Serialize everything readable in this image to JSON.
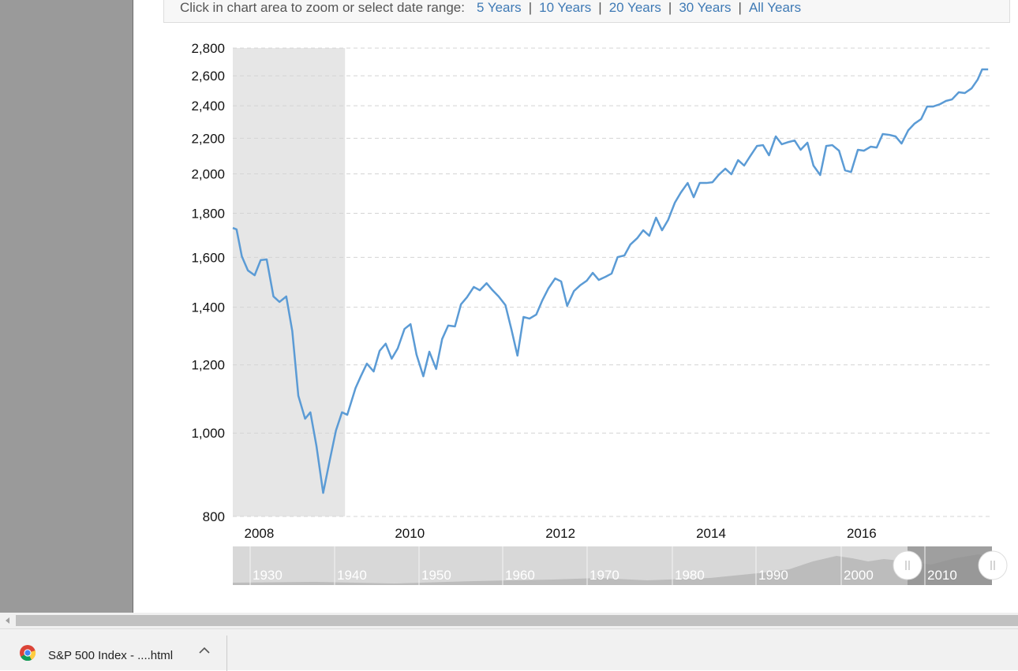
{
  "toolbar": {
    "prompt": "Click in chart area to zoom or select date range:",
    "separator": "|",
    "ranges": [
      "5 Years",
      "10 Years",
      "20 Years",
      "30 Years",
      "All Years"
    ]
  },
  "chart_data": {
    "type": "line",
    "yscale": "log",
    "color": "#5b9bd5",
    "grid": true,
    "xlim": [
      2007.65,
      2017.72
    ],
    "xticks": [
      2008,
      2010,
      2012,
      2014,
      2016
    ],
    "ylim": [
      800,
      2800
    ],
    "yticks": [
      800,
      {
        "value": 1000,
        "label": "1,000"
      },
      {
        "value": 1200,
        "label": "1,200"
      },
      {
        "value": 1400,
        "label": "1,400"
      },
      {
        "value": 1600,
        "label": "1,600"
      },
      {
        "value": 1800,
        "label": "1,800"
      },
      {
        "value": 2000,
        "label": "2,000"
      },
      {
        "value": 2200,
        "label": "2,200"
      },
      {
        "value": 2400,
        "label": "2,400"
      },
      {
        "value": 2600,
        "label": "2,600"
      },
      {
        "value": 2800,
        "label": "2,800"
      }
    ],
    "shaded_range": [
      2007.65,
      2009.14
    ],
    "x": [
      2007.65,
      2007.7,
      2007.77,
      2007.85,
      2007.94,
      2008.02,
      2008.1,
      2008.19,
      2008.27,
      2008.36,
      2008.44,
      2008.52,
      2008.61,
      2008.68,
      2008.76,
      2008.85,
      2008.93,
      2009.02,
      2009.1,
      2009.17,
      2009.28,
      2009.35,
      2009.43,
      2009.52,
      2009.6,
      2009.68,
      2009.76,
      2009.84,
      2009.93,
      2010.01,
      2010.09,
      2010.18,
      2010.26,
      2010.35,
      2010.43,
      2010.51,
      2010.6,
      2010.68,
      2010.76,
      2010.85,
      2010.93,
      2011.02,
      2011.1,
      2011.18,
      2011.27,
      2011.35,
      2011.43,
      2011.51,
      2011.59,
      2011.68,
      2011.76,
      2011.84,
      2011.93,
      2012.01,
      2012.09,
      2012.18,
      2012.26,
      2012.35,
      2012.43,
      2012.51,
      2012.6,
      2012.68,
      2012.76,
      2012.85,
      2012.93,
      2013.02,
      2013.1,
      2013.18,
      2013.27,
      2013.35,
      2013.43,
      2013.52,
      2013.6,
      2013.69,
      2013.77,
      2013.85,
      2013.94,
      2014.02,
      2014.1,
      2014.19,
      2014.27,
      2014.36,
      2014.44,
      2014.52,
      2014.61,
      2014.69,
      2014.77,
      2014.86,
      2014.94,
      2015.03,
      2015.11,
      2015.19,
      2015.28,
      2015.36,
      2015.45,
      2015.53,
      2015.61,
      2015.7,
      2015.78,
      2015.86,
      2015.95,
      2016.03,
      2016.12,
      2016.2,
      2016.28,
      2016.37,
      2016.45,
      2016.53,
      2016.62,
      2016.7,
      2016.79,
      2016.87,
      2016.95,
      2017.04,
      2017.12,
      2017.2,
      2017.29,
      2017.37,
      2017.46,
      2017.54,
      2017.6,
      2017.68
    ],
    "values": [
      1731,
      1724,
      1604,
      1545,
      1525,
      1588,
      1591,
      1441,
      1420,
      1441,
      1313,
      1105,
      1039,
      1057,
      967,
      852,
      923,
      1007,
      1057,
      1050,
      1128,
      1164,
      1204,
      1179,
      1246,
      1270,
      1220,
      1254,
      1321,
      1338,
      1233,
      1164,
      1243,
      1187,
      1286,
      1333,
      1330,
      1411,
      1438,
      1478,
      1465,
      1493,
      1465,
      1441,
      1408,
      1319,
      1230,
      1364,
      1358,
      1373,
      1426,
      1472,
      1512,
      1500,
      1405,
      1462,
      1484,
      1503,
      1535,
      1506,
      1519,
      1532,
      1601,
      1608,
      1656,
      1684,
      1720,
      1695,
      1779,
      1720,
      1768,
      1852,
      1903,
      1952,
      1879,
      1952,
      1952,
      1956,
      1994,
      2028,
      1998,
      2075,
      2045,
      2097,
      2155,
      2160,
      2102,
      2211,
      2165,
      2178,
      2187,
      2133,
      2174,
      2045,
      1994,
      2155,
      2160,
      2128,
      2019,
      2010,
      2133,
      2128,
      2151,
      2146,
      2225,
      2220,
      2211,
      2169,
      2248,
      2287,
      2316,
      2395,
      2395,
      2410,
      2431,
      2441,
      2488,
      2483,
      2514,
      2573,
      2645,
      2645
    ]
  },
  "navigator": {
    "labels": [
      "1930",
      "1940",
      "1950",
      "1960",
      "1970",
      "1980",
      "1990",
      "2000",
      "2010"
    ]
  },
  "download_bar": {
    "file": "S&P 500 Index - ....html"
  }
}
